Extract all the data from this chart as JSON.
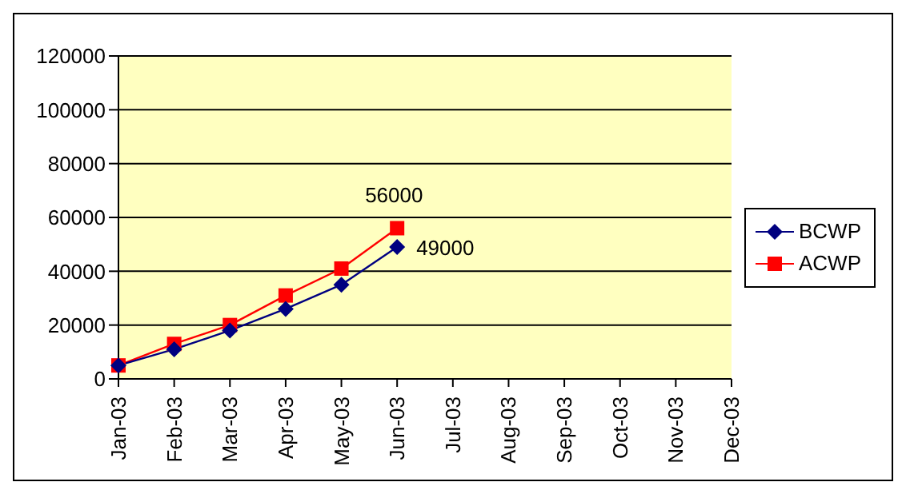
{
  "chart_data": {
    "type": "line",
    "categories": [
      "Jan-03",
      "Feb-03",
      "Mar-03",
      "Apr-03",
      "May-03",
      "Jun-03",
      "Jul-03",
      "Aug-03",
      "Sep-03",
      "Oct-03",
      "Nov-03",
      "Dec-03"
    ],
    "series": [
      {
        "name": "BCWP",
        "color": "#000080",
        "marker": "diamond",
        "values": [
          5000,
          11000,
          18000,
          26000,
          35000,
          49000,
          null,
          null,
          null,
          null,
          null,
          null
        ],
        "value_labels": [
          null,
          null,
          null,
          null,
          null,
          "49000",
          null,
          null,
          null,
          null,
          null,
          null
        ]
      },
      {
        "name": "ACWP",
        "color": "#ff0000",
        "marker": "square",
        "values": [
          5000,
          13000,
          20000,
          31000,
          41000,
          56000,
          null,
          null,
          null,
          null,
          null,
          null
        ],
        "value_labels": [
          null,
          null,
          null,
          null,
          null,
          "56000",
          null,
          null,
          null,
          null,
          null,
          null
        ]
      }
    ],
    "ylim": [
      0,
      120000
    ],
    "yticks": [
      0,
      20000,
      40000,
      60000,
      80000,
      100000,
      120000
    ],
    "grid": "y",
    "legend": "right",
    "line_style": "solid"
  }
}
